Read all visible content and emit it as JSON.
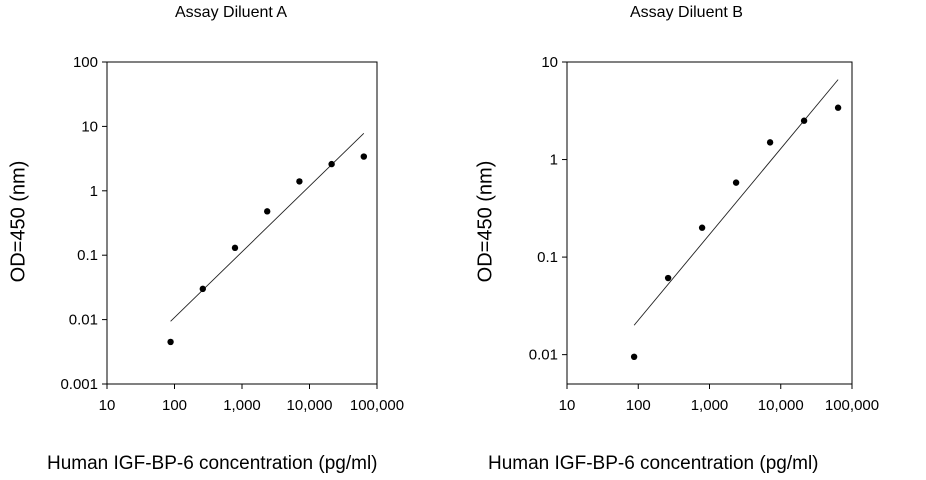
{
  "chart_data": [
    {
      "type": "scatter",
      "title": "Assay Diluent A",
      "xlabel": "Human IGF-BP-6 concentration (pg/ml)",
      "ylabel": "OD=450 (nm)",
      "xscale": "log",
      "yscale": "log",
      "xlim": [
        10,
        100000
      ],
      "ylim": [
        0.001,
        100
      ],
      "xticks": [
        10,
        100,
        1000,
        10000,
        100000
      ],
      "xtick_labels": [
        "10",
        "100",
        "1,000",
        "10,000",
        "100,000"
      ],
      "yticks": [
        0.001,
        0.01,
        0.1,
        1,
        10,
        100
      ],
      "ytick_labels": [
        "0.001",
        "0.01",
        "0.1",
        "1",
        "10",
        "100"
      ],
      "grid": false,
      "series": [
        {
          "x": [
            87.5,
            262.5,
            787.5,
            2362.5,
            7087.5,
            21262.5,
            63787.5
          ],
          "y": [
            0.0045,
            0.03,
            0.13,
            0.48,
            1.4,
            2.6,
            3.4
          ]
        }
      ],
      "fit_line": {
        "x": [
          87.5,
          63787.5
        ],
        "y": [
          0.0094,
          7.8
        ]
      }
    },
    {
      "type": "scatter",
      "title": "Assay Diluent B",
      "xlabel": "Human IGF-BP-6 concentration (pg/ml)",
      "ylabel": "OD=450 (nm)",
      "xscale": "log",
      "yscale": "log",
      "xlim": [
        10,
        100000
      ],
      "ylim": [
        0.005,
        10
      ],
      "xticks": [
        10,
        100,
        1000,
        10000,
        100000
      ],
      "xtick_labels": [
        "10",
        "100",
        "1,000",
        "10,000",
        "100,000"
      ],
      "yticks": [
        0.01,
        0.1,
        1,
        10
      ],
      "ytick_labels": [
        "0.01",
        "0.1",
        "1",
        "10"
      ],
      "grid": false,
      "series": [
        {
          "x": [
            87.5,
            262.5,
            787.5,
            2362.5,
            7087.5,
            21262.5,
            63787.5
          ],
          "y": [
            0.0095,
            0.061,
            0.2,
            0.58,
            1.5,
            2.5,
            3.4
          ]
        }
      ],
      "fit_line": {
        "x": [
          87.5,
          63787.5
        ],
        "y": [
          0.02,
          6.6
        ]
      }
    }
  ]
}
